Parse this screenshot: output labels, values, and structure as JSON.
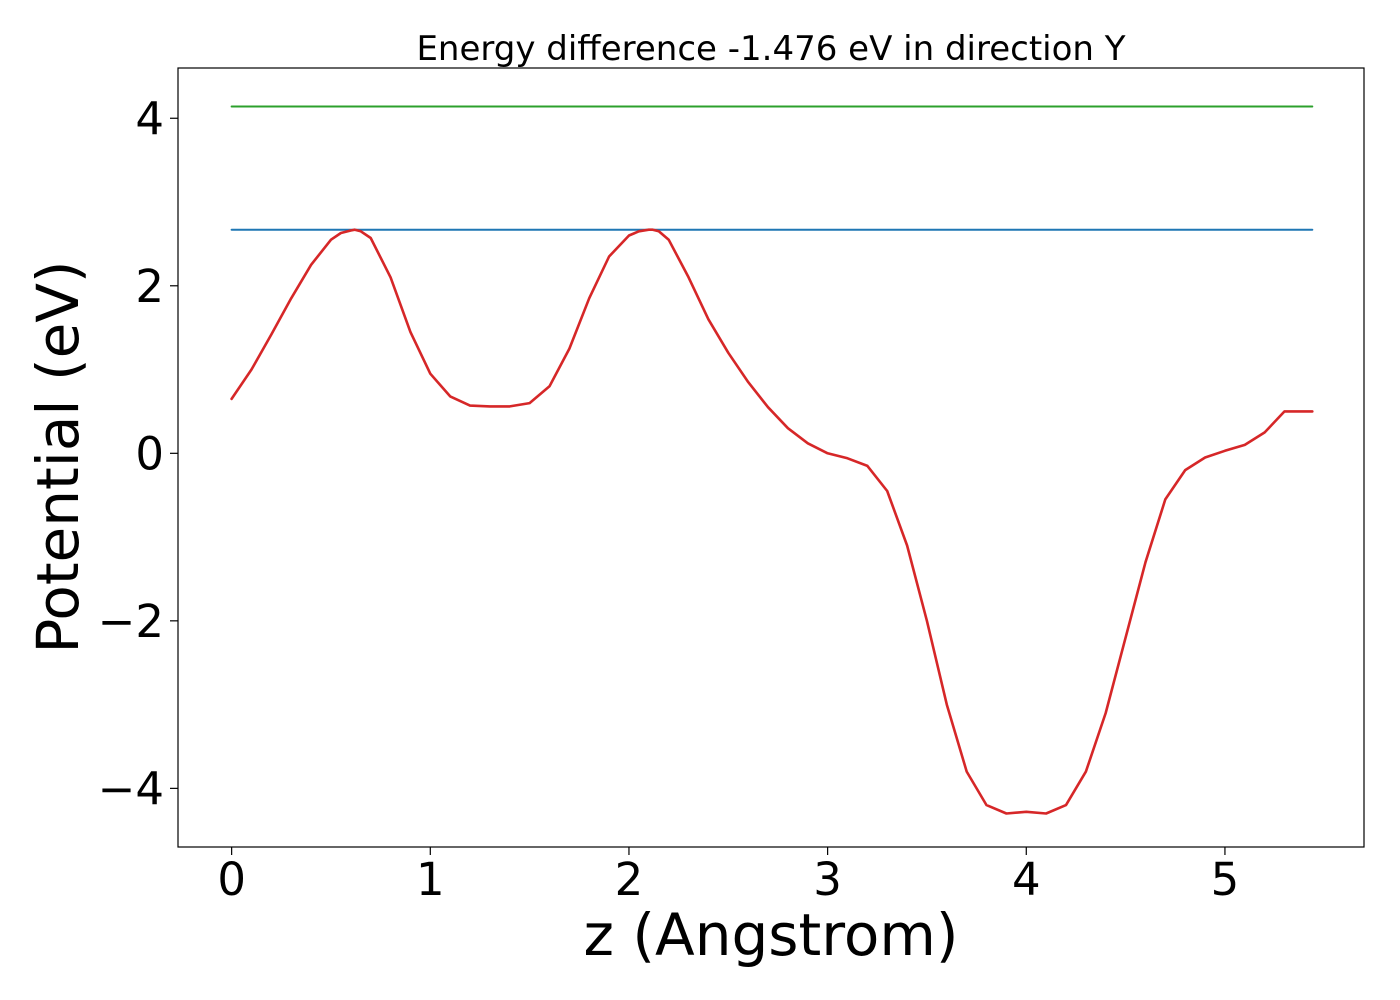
{
  "chart_data": {
    "type": "line",
    "title": "Energy difference -1.476 eV in direction Y",
    "xlabel": "z (Angstrom)",
    "ylabel": "Potential (eV)",
    "xlim": [
      -0.27,
      5.7
    ],
    "ylim": [
      -4.7,
      4.6
    ],
    "xticks": [
      0,
      1,
      2,
      3,
      4,
      5
    ],
    "yticks": [
      -4,
      -2,
      0,
      2,
      4
    ],
    "xtick_labels": [
      "0",
      "1",
      "2",
      "3",
      "4",
      "5"
    ],
    "ytick_labels": [
      "−4",
      "−2",
      "0",
      "2",
      "4"
    ],
    "grid": false,
    "series": [
      {
        "color": "#2ca02c",
        "x": [
          0,
          5.44
        ],
        "y": [
          4.14,
          4.14
        ]
      },
      {
        "color": "#1f77b4",
        "x": [
          0,
          5.44
        ],
        "y": [
          2.67,
          2.67
        ]
      },
      {
        "color": "#d62728",
        "x": [
          0,
          0.1,
          0.2,
          0.3,
          0.4,
          0.5,
          0.55,
          0.6,
          0.62,
          0.65,
          0.7,
          0.8,
          0.9,
          1.0,
          1.1,
          1.2,
          1.3,
          1.4,
          1.5,
          1.6,
          1.7,
          1.8,
          1.9,
          2.0,
          2.05,
          2.1,
          2.12,
          2.15,
          2.2,
          2.3,
          2.4,
          2.5,
          2.6,
          2.7,
          2.8,
          2.9,
          3.0,
          3.1,
          3.2,
          3.3,
          3.4,
          3.5,
          3.6,
          3.7,
          3.8,
          3.9,
          4.0,
          4.1,
          4.2,
          4.3,
          4.4,
          4.5,
          4.6,
          4.7,
          4.8,
          4.9,
          5.0,
          5.1,
          5.2,
          5.3,
          5.44
        ],
        "y": [
          0.65,
          1.0,
          1.42,
          1.85,
          2.25,
          2.55,
          2.63,
          2.66,
          2.67,
          2.65,
          2.57,
          2.1,
          1.45,
          0.95,
          0.68,
          0.57,
          0.56,
          0.56,
          0.6,
          0.8,
          1.25,
          1.85,
          2.35,
          2.6,
          2.65,
          2.67,
          2.67,
          2.65,
          2.55,
          2.1,
          1.6,
          1.2,
          0.85,
          0.55,
          0.3,
          0.12,
          0.0,
          -0.06,
          -0.15,
          -0.45,
          -1.1,
          -2.0,
          -3.0,
          -3.8,
          -4.2,
          -4.3,
          -4.28,
          -4.3,
          -4.2,
          -3.8,
          -3.1,
          -2.2,
          -1.3,
          -0.55,
          -0.2,
          -0.05,
          0.03,
          0.1,
          0.25,
          0.5,
          0.5
        ]
      }
    ]
  }
}
